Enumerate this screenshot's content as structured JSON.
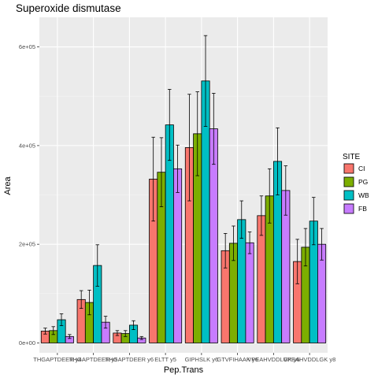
{
  "chart_data": {
    "type": "bar",
    "title": "Superoxide dismutase",
    "xlabel": "Pep.Trans",
    "ylabel": "Area",
    "ylim": [
      -20000,
      660000
    ],
    "yticks": [
      0,
      200000,
      400000,
      600000
    ],
    "ytick_labels": [
      "0e+00",
      "2e+05",
      "4e+05",
      "6e+05"
    ],
    "categories": [
      "THGAPTDEER y4",
      "THGAPTDEER y5",
      "THGAPTDEER y6",
      "ELTT y5",
      "GIPHSLK y6",
      "GTVFIHAAK y6",
      "VPEAHVDDLGK y6",
      "VPEAHVDDLGK y8"
    ],
    "category_labels": [
      "THGAPTDEER y4",
      "THGAPTDEER y5",
      "THGAPTDEER y6",
      "ELTT y5",
      "GIPHSLK y6",
      "GTVFIHAAK y6",
      "VPEAHVDDLGK y6",
      "VPEAHVDDLGK y8"
    ],
    "legend_title": "SITE",
    "legend_position": "right",
    "grid": true,
    "series": [
      {
        "name": "CI",
        "color": "#F8766D",
        "values": [
          24000,
          88000,
          20000,
          332000,
          396000,
          187000,
          258000,
          165000
        ],
        "errors": [
          6000,
          18000,
          5000,
          85000,
          108000,
          35000,
          40000,
          45000
        ]
      },
      {
        "name": "PG",
        "color": "#7CAE00",
        "values": [
          25000,
          82000,
          19000,
          346000,
          424000,
          202000,
          298000,
          194000
        ],
        "errors": [
          8000,
          25000,
          6000,
          70000,
          85000,
          35000,
          55000,
          38000
        ]
      },
      {
        "name": "WB",
        "color": "#00BFC4",
        "values": [
          47000,
          157000,
          36000,
          442000,
          531000,
          250000,
          368000,
          247000
        ],
        "errors": [
          12000,
          42000,
          9000,
          72000,
          92000,
          38000,
          68000,
          48000
        ]
      },
      {
        "name": "FB",
        "color": "#C77CFF",
        "values": [
          13000,
          42000,
          10000,
          353000,
          434000,
          203000,
          309000,
          200000
        ],
        "errors": [
          4000,
          12000,
          3000,
          48000,
          72000,
          22000,
          50000,
          32000
        ]
      }
    ]
  }
}
